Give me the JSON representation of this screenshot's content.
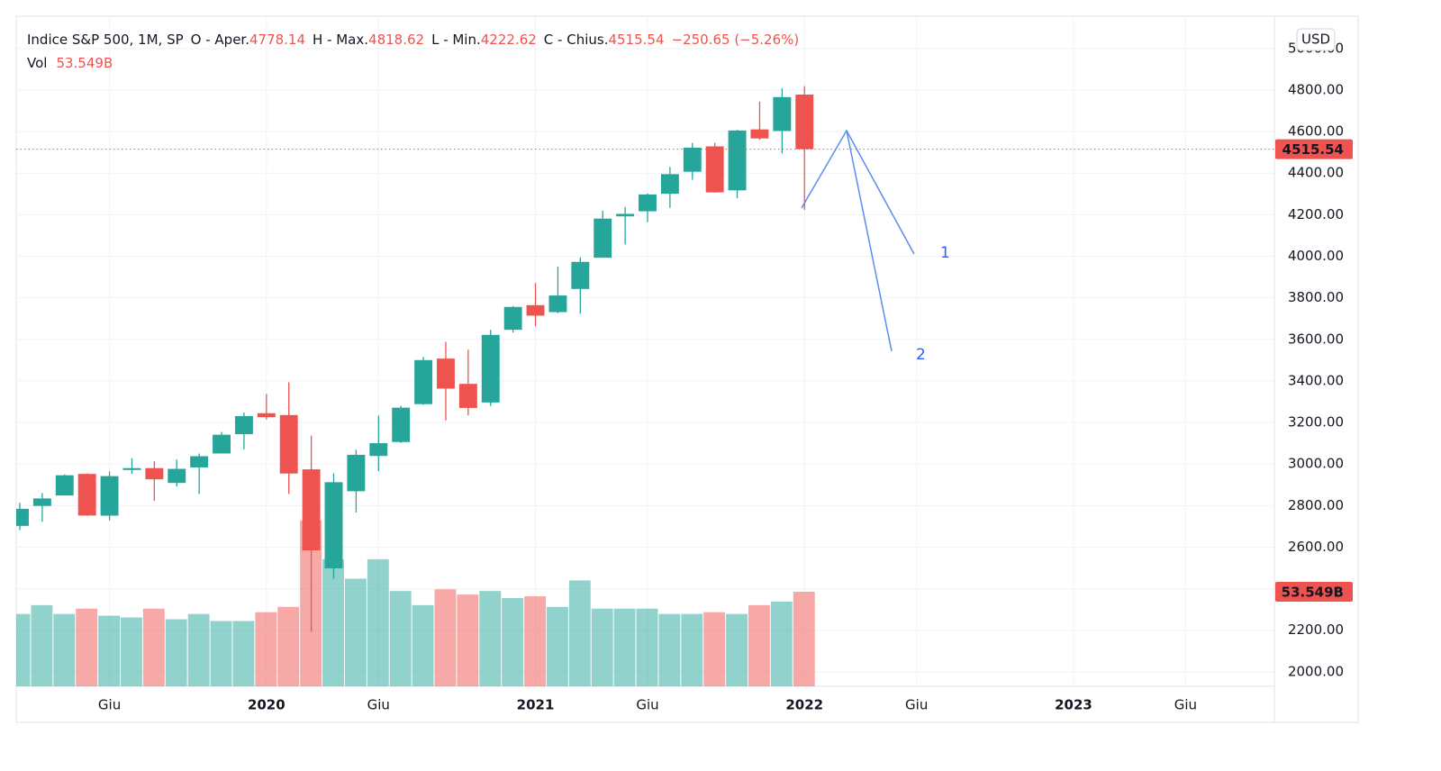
{
  "chart_data": {
    "type": "candlestick",
    "title": "Indice S&P 500, 1M, SP",
    "ohlc_labels": [
      "O - Aper.",
      "H - Max.",
      "L - Min.",
      "C - Chius."
    ],
    "change_label": "−250.65 (−5.26%)",
    "currency": "USD",
    "x": [
      "2019-02",
      "2019-03",
      "2019-04",
      "2019-05",
      "2019-06",
      "2019-07",
      "2019-08",
      "2019-09",
      "2019-10",
      "2019-11",
      "2019-12",
      "2020-01",
      "2020-02",
      "2020-03",
      "2020-04",
      "2020-05",
      "2020-06",
      "2020-07",
      "2020-08",
      "2020-09",
      "2020-10",
      "2020-11",
      "2020-12",
      "2021-01",
      "2021-02",
      "2021-03",
      "2021-04",
      "2021-05",
      "2021-06",
      "2021-07",
      "2021-08",
      "2021-09",
      "2021-10",
      "2021-11",
      "2021-12",
      "2022-01"
    ],
    "open": [
      2702.32,
      2798.22,
      2848.63,
      2952.33,
      2751.53,
      2971.41,
      2980.32,
      2909.01,
      2983.69,
      3050.72,
      3143.85,
      3244.67,
      3235.66,
      2974.28,
      2498.08,
      2869.09,
      3038.78,
      3105.92,
      3288.26,
      3507.44,
      3385.87,
      3296.2,
      3645.87,
      3764.61,
      3731.17,
      3842.51,
      3992.78,
      4191.98,
      4216.52,
      4300.73,
      4406.86,
      4528.8,
      4317.16,
      4610.62,
      4602.82,
      4778.14
    ],
    "high": [
      2813.49,
      2860.31,
      2949.52,
      2954.13,
      2964.15,
      3027.98,
      3013.59,
      3021.99,
      3050.1,
      3154.26,
      3247.93,
      3337.77,
      3393.52,
      3136.72,
      2954.86,
      3068.67,
      3233.13,
      3279.99,
      3514.77,
      3588.11,
      3549.85,
      3645.99,
      3760.2,
      3870.9,
      3950.43,
      3994.41,
      4218.78,
      4238.04,
      4302.43,
      4429.97,
      4545.85,
      4545.85,
      4608.08,
      4743.83,
      4808.93,
      4818.62
    ],
    "low": [
      2681.83,
      2722.27,
      2848.63,
      2750.52,
      2728.81,
      2952.22,
      2822.12,
      2891.85,
      2855.94,
      3050.72,
      3070.33,
      3214.64,
      2855.84,
      2191.86,
      2447.49,
      2766.64,
      2965.66,
      3101.17,
      3284.53,
      3209.45,
      3233.94,
      3279.74,
      3633.4,
      3662.71,
      3725.62,
      3723.34,
      3992.78,
      4056.88,
      4164.4,
      4233.13,
      4367.73,
      4305.91,
      4278.94,
      4560.0,
      4495.12,
      4222.62
    ],
    "close": [
      2784.49,
      2834.4,
      2945.83,
      2752.06,
      2941.76,
      2980.38,
      2926.46,
      2976.74,
      3037.56,
      3140.98,
      3230.78,
      3225.52,
      2954.22,
      2584.59,
      2912.43,
      3044.31,
      3100.29,
      3271.12,
      3500.31,
      3363.0,
      3269.96,
      3621.63,
      3756.07,
      3714.24,
      3811.15,
      3972.89,
      4181.17,
      4204.11,
      4297.5,
      4395.26,
      4522.68,
      4307.54,
      4605.38,
      4567.0,
      4766.18,
      4515.54
    ],
    "up_color": "#26a69a",
    "down_color": "#ef5350",
    "volume": {
      "name": "Vol",
      "values": [
        41,
        46,
        41,
        44,
        40,
        39,
        44,
        38,
        41,
        37,
        37,
        42,
        45,
        94,
        72,
        61,
        72,
        54,
        46,
        55,
        52,
        54,
        50,
        51,
        45,
        60,
        44,
        44,
        44,
        41,
        41,
        42,
        41,
        46,
        48,
        53.549
      ],
      "value_labels": [
        null,
        null,
        null,
        null,
        null,
        null,
        null,
        null,
        null,
        null,
        null,
        null,
        null,
        null,
        null,
        null,
        null,
        null,
        null,
        null,
        null,
        null,
        null,
        null,
        null,
        null,
        null,
        null,
        null,
        null,
        null,
        null,
        null,
        null,
        null,
        "53.549B"
      ],
      "ylim": [
        0,
        150
      ]
    },
    "ylim": [
      1930,
      5112
    ],
    "yticks": [
      {
        "value": 2000,
        "label": "2000.00"
      },
      {
        "value": 2200,
        "label": "2200.00"
      },
      {
        "value": 2400,
        "label": "2400.00"
      },
      {
        "value": 2600,
        "label": "2600.00"
      },
      {
        "value": 2800,
        "label": "2800.00"
      },
      {
        "value": 3000,
        "label": "3000.00"
      },
      {
        "value": 3200,
        "label": "3200.00"
      },
      {
        "value": 3400,
        "label": "3400.00"
      },
      {
        "value": 3600,
        "label": "3600.00"
      },
      {
        "value": 3800,
        "label": "3800.00"
      },
      {
        "value": 4000,
        "label": "4000.00"
      },
      {
        "value": 4200,
        "label": "4200.00"
      },
      {
        "value": 4400,
        "label": "4400.00"
      },
      {
        "value": 4600,
        "label": "4600.00"
      },
      {
        "value": 4800,
        "label": "4800.00"
      },
      {
        "value": 5000,
        "label": "5000.00"
      }
    ],
    "xlim": [
      "2019-02",
      "2023-10"
    ],
    "xticks": [
      {
        "value": "2019-06",
        "label": "Giu"
      },
      {
        "value": "2020-01",
        "label": "2020"
      },
      {
        "value": "2020-06",
        "label": "Giu"
      },
      {
        "value": "2021-01",
        "label": "2021"
      },
      {
        "value": "2021-06",
        "label": "Giu"
      },
      {
        "value": "2022-01",
        "label": "2022"
      },
      {
        "value": "2022-06",
        "label": "Giu"
      },
      {
        "value": "2023-01",
        "label": "2023"
      },
      {
        "value": "2023-06",
        "label": "Giu"
      }
    ],
    "grid": true,
    "annotations": [
      "1",
      "2"
    ]
  }
}
